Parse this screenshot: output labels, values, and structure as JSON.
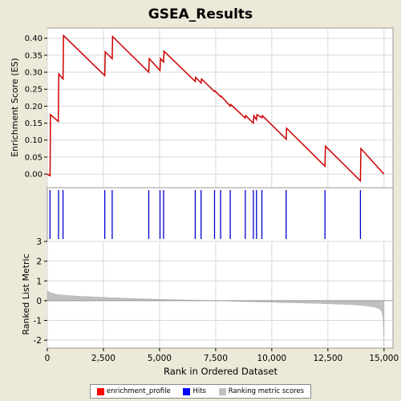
{
  "chart_data": {
    "title": "GSEA_Results",
    "type": "line",
    "xlabel": "Rank in Ordered Dataset",
    "x_ticks": [
      0,
      2500,
      5000,
      7500,
      10000,
      12500,
      15000
    ],
    "x_tick_labels": [
      "0",
      "2,500",
      "5,000",
      "7,500",
      "10,000",
      "12,500",
      "15,000"
    ],
    "xlim": [
      0,
      15400
    ],
    "grid": true,
    "legend_placement": "bottom",
    "colors": {
      "enrichment_profile": "#cc0000",
      "hits": "#0000cc",
      "ranking": "#c0c0c0",
      "background": "#ECE9D8"
    },
    "legend": [
      {
        "label": "enrichment_profile",
        "color": "#ff0000"
      },
      {
        "label": "Hits",
        "color": "#0000ff"
      },
      {
        "label": "Ranking metric scores",
        "color": "#c0c0c0"
      }
    ],
    "enrichment": {
      "ylabel": "Enrichment Score (ES)",
      "ylim": [
        -0.04,
        0.43
      ],
      "y_ticks": [
        0.0,
        0.05,
        0.1,
        0.15,
        0.2,
        0.25,
        0.3,
        0.35,
        0.4
      ],
      "y_tick_labels": [
        "0.00",
        "0.05",
        "0.10",
        "0.15",
        "0.20",
        "0.25",
        "0.30",
        "0.35",
        "0.40"
      ],
      "x": [
        0,
        120,
        140,
        490,
        510,
        700,
        720,
        2560,
        2580,
        2890,
        2910,
        4520,
        4540,
        5020,
        5040,
        5180,
        5200,
        6590,
        6610,
        6850,
        6870,
        7450,
        7470,
        7720,
        7740,
        8150,
        8170,
        8820,
        8840,
        9180,
        9200,
        9320,
        9340,
        9560,
        9580,
        10640,
        10660,
        12370,
        12390,
        13950,
        13970,
        15000
      ],
      "y": [
        0.0,
        -0.005,
        0.175,
        0.155,
        0.295,
        0.28,
        0.408,
        0.29,
        0.36,
        0.34,
        0.405,
        0.3,
        0.34,
        0.305,
        0.34,
        0.33,
        0.362,
        0.273,
        0.285,
        0.268,
        0.28,
        0.243,
        0.245,
        0.228,
        0.23,
        0.2,
        0.205,
        0.165,
        0.172,
        0.15,
        0.172,
        0.16,
        0.175,
        0.166,
        0.172,
        0.103,
        0.135,
        0.023,
        0.082,
        -0.02,
        0.075,
        0.0
      ]
    },
    "hits": {
      "positions": [
        120,
        500,
        700,
        2560,
        2890,
        4520,
        5020,
        5180,
        6590,
        6850,
        7450,
        7720,
        8150,
        8820,
        9180,
        9320,
        9560,
        10640,
        12370,
        13950
      ]
    },
    "ranking": {
      "ylabel": "Ranked List Metric",
      "ylim": [
        -2.4,
        3.0
      ],
      "y_ticks": [
        -2,
        -1,
        0,
        1,
        2,
        3
      ],
      "y_tick_labels": [
        "-2",
        "-1",
        "0",
        "1",
        "2",
        "3"
      ],
      "x": [
        0,
        150,
        400,
        800,
        1500,
        2500,
        4000,
        6000,
        8000,
        8500,
        10000,
        12000,
        13500,
        14200,
        14600,
        14800,
        14900,
        14960,
        15000
      ],
      "y": [
        0.5,
        0.4,
        0.32,
        0.27,
        0.22,
        0.17,
        0.1,
        0.04,
        -0.02,
        -0.04,
        -0.08,
        -0.14,
        -0.2,
        -0.26,
        -0.33,
        -0.42,
        -0.55,
        -0.9,
        -2.25
      ]
    }
  }
}
